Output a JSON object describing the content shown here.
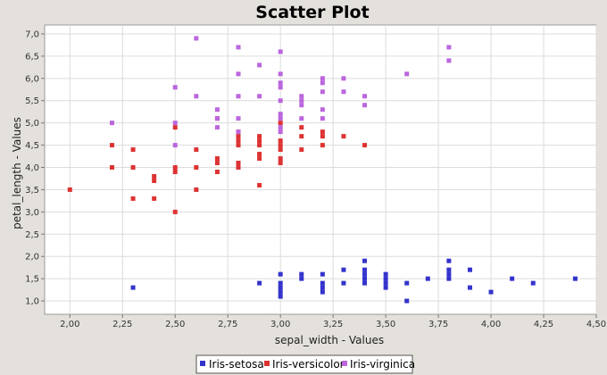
{
  "chart_data": {
    "type": "scatter",
    "title": "Scatter Plot",
    "xlabel": "sepal_width - Values",
    "ylabel": "petal_length - Values",
    "xlim": [
      1.88,
      4.5
    ],
    "ylim": [
      0.7,
      7.2
    ],
    "x_ticks": [
      2.0,
      2.25,
      2.5,
      2.75,
      3.0,
      3.25,
      3.5,
      3.75,
      4.0,
      4.25,
      4.5
    ],
    "x_tick_labels": [
      "2,00",
      "2,25",
      "2,50",
      "2,75",
      "3,00",
      "3,25",
      "3,50",
      "3,75",
      "4,00",
      "4,25",
      "4,50"
    ],
    "y_ticks": [
      1.0,
      1.5,
      2.0,
      2.5,
      3.0,
      3.5,
      4.0,
      4.5,
      5.0,
      5.5,
      6.0,
      6.5,
      7.0
    ],
    "y_tick_labels": [
      "1,0",
      "1,5",
      "2,0",
      "2,5",
      "3,0",
      "3,5",
      "4,0",
      "4,5",
      "5,0",
      "5,5",
      "6,0",
      "6,5",
      "7,0"
    ],
    "grid": true,
    "legend_position": "bottom-center",
    "series": [
      {
        "name": "Iris-setosa",
        "color": "#3333cc",
        "points": [
          [
            2.3,
            1.3
          ],
          [
            2.9,
            1.4
          ],
          [
            3.0,
            1.6
          ],
          [
            3.0,
            1.4
          ],
          [
            3.0,
            1.3
          ],
          [
            3.0,
            1.2
          ],
          [
            3.0,
            1.1
          ],
          [
            3.1,
            1.6
          ],
          [
            3.1,
            1.5
          ],
          [
            3.2,
            1.6
          ],
          [
            3.2,
            1.4
          ],
          [
            3.2,
            1.3
          ],
          [
            3.2,
            1.2
          ],
          [
            3.3,
            1.7
          ],
          [
            3.3,
            1.4
          ],
          [
            3.4,
            1.9
          ],
          [
            3.4,
            1.7
          ],
          [
            3.4,
            1.6
          ],
          [
            3.4,
            1.5
          ],
          [
            3.4,
            1.4
          ],
          [
            3.5,
            1.6
          ],
          [
            3.5,
            1.5
          ],
          [
            3.5,
            1.4
          ],
          [
            3.5,
            1.3
          ],
          [
            3.6,
            1.4
          ],
          [
            3.6,
            1.0
          ],
          [
            3.7,
            1.5
          ],
          [
            3.8,
            1.9
          ],
          [
            3.8,
            1.7
          ],
          [
            3.8,
            1.6
          ],
          [
            3.8,
            1.5
          ],
          [
            3.9,
            1.7
          ],
          [
            3.9,
            1.3
          ],
          [
            4.0,
            1.2
          ],
          [
            4.1,
            1.5
          ],
          [
            4.2,
            1.4
          ],
          [
            4.4,
            1.5
          ]
        ]
      },
      {
        "name": "Iris-versicolor",
        "color": "#dd3333",
        "points": [
          [
            2.0,
            3.5
          ],
          [
            2.2,
            4.5
          ],
          [
            2.2,
            4.0
          ],
          [
            2.3,
            4.4
          ],
          [
            2.3,
            4.0
          ],
          [
            2.3,
            3.3
          ],
          [
            2.4,
            3.8
          ],
          [
            2.4,
            3.7
          ],
          [
            2.4,
            3.3
          ],
          [
            2.5,
            4.0
          ],
          [
            2.5,
            3.9
          ],
          [
            2.5,
            3.0
          ],
          [
            2.5,
            4.9
          ],
          [
            2.6,
            4.4
          ],
          [
            2.6,
            4.0
          ],
          [
            2.6,
            3.5
          ],
          [
            2.7,
            5.1
          ],
          [
            2.7,
            4.2
          ],
          [
            2.7,
            4.1
          ],
          [
            2.7,
            3.9
          ],
          [
            2.8,
            4.8
          ],
          [
            2.8,
            4.7
          ],
          [
            2.8,
            4.6
          ],
          [
            2.8,
            4.5
          ],
          [
            2.8,
            4.1
          ],
          [
            2.8,
            4.0
          ],
          [
            2.9,
            4.7
          ],
          [
            2.9,
            4.6
          ],
          [
            2.9,
            4.5
          ],
          [
            2.9,
            4.3
          ],
          [
            2.9,
            4.2
          ],
          [
            2.9,
            3.6
          ],
          [
            3.0,
            5.0
          ],
          [
            3.0,
            4.6
          ],
          [
            3.0,
            4.5
          ],
          [
            3.0,
            4.4
          ],
          [
            3.0,
            4.2
          ],
          [
            3.0,
            4.1
          ],
          [
            3.1,
            4.9
          ],
          [
            3.1,
            4.7
          ],
          [
            3.1,
            4.4
          ],
          [
            3.2,
            4.8
          ],
          [
            3.2,
            4.7
          ],
          [
            3.2,
            4.5
          ],
          [
            3.3,
            4.7
          ],
          [
            3.4,
            4.5
          ]
        ]
      },
      {
        "name": "Iris-virginica",
        "color": "#bb66dd",
        "points": [
          [
            2.2,
            5.0
          ],
          [
            2.5,
            5.8
          ],
          [
            2.5,
            5.0
          ],
          [
            2.5,
            4.5
          ],
          [
            2.6,
            6.9
          ],
          [
            2.6,
            5.6
          ],
          [
            2.7,
            5.3
          ],
          [
            2.7,
            5.1
          ],
          [
            2.7,
            4.9
          ],
          [
            2.8,
            6.7
          ],
          [
            2.8,
            6.1
          ],
          [
            2.8,
            5.6
          ],
          [
            2.8,
            5.1
          ],
          [
            2.8,
            4.8
          ],
          [
            2.9,
            6.3
          ],
          [
            2.9,
            5.6
          ],
          [
            3.0,
            6.6
          ],
          [
            3.0,
            6.1
          ],
          [
            3.0,
            5.9
          ],
          [
            3.0,
            5.8
          ],
          [
            3.0,
            5.5
          ],
          [
            3.0,
            5.2
          ],
          [
            3.0,
            5.1
          ],
          [
            3.0,
            4.9
          ],
          [
            3.0,
            4.8
          ],
          [
            3.1,
            5.6
          ],
          [
            3.1,
            5.5
          ],
          [
            3.1,
            5.4
          ],
          [
            3.1,
            5.1
          ],
          [
            3.2,
            6.0
          ],
          [
            3.2,
            5.9
          ],
          [
            3.2,
            5.7
          ],
          [
            3.2,
            5.3
          ],
          [
            3.2,
            5.1
          ],
          [
            3.3,
            6.0
          ],
          [
            3.3,
            5.7
          ],
          [
            3.4,
            5.6
          ],
          [
            3.4,
            5.4
          ],
          [
            3.6,
            6.1
          ],
          [
            3.8,
            6.7
          ],
          [
            3.8,
            6.4
          ]
        ]
      }
    ]
  }
}
